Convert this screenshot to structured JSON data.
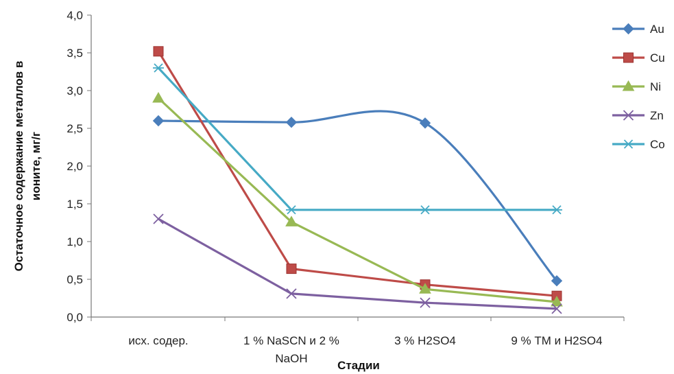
{
  "chart_data": {
    "type": "line",
    "categories": [
      [
        "исх. содер."
      ],
      [
        "1 % NaSCN и 2 %",
        "NaOH"
      ],
      [
        "3 % H2SO4"
      ],
      [
        "9 % ТМ и H2SO4"
      ]
    ],
    "xlabel": "Стадии",
    "ylabel_lines": [
      "Остаточное содержание металлов в",
      "ионите, мг/г"
    ],
    "ylim": [
      0,
      4
    ],
    "yticks": [
      "0,0",
      "0,5",
      "1,0",
      "1,5",
      "2,0",
      "2,5",
      "3,0",
      "3,5",
      "4,0"
    ],
    "grid": false,
    "legend_position": "right",
    "series": [
      {
        "name": "Au",
        "values": [
          2.6,
          2.58,
          2.57,
          0.48
        ],
        "color": "#4a7ebb",
        "marker": "diamond",
        "smooth": true
      },
      {
        "name": "Cu",
        "values": [
          3.52,
          0.64,
          0.43,
          0.28
        ],
        "color": "#be4b48",
        "marker": "square",
        "smooth": false
      },
      {
        "name": "Ni",
        "values": [
          2.9,
          1.26,
          0.37,
          0.2
        ],
        "color": "#98b954",
        "marker": "triangle",
        "smooth": false
      },
      {
        "name": "Zn",
        "values": [
          1.3,
          0.31,
          0.19,
          0.11
        ],
        "color": "#7d60a0",
        "marker": "x",
        "smooth": false
      },
      {
        "name": "Co",
        "values": [
          3.3,
          1.42,
          1.42,
          1.42
        ],
        "color": "#46aac5",
        "marker": "star",
        "smooth": false
      }
    ]
  }
}
